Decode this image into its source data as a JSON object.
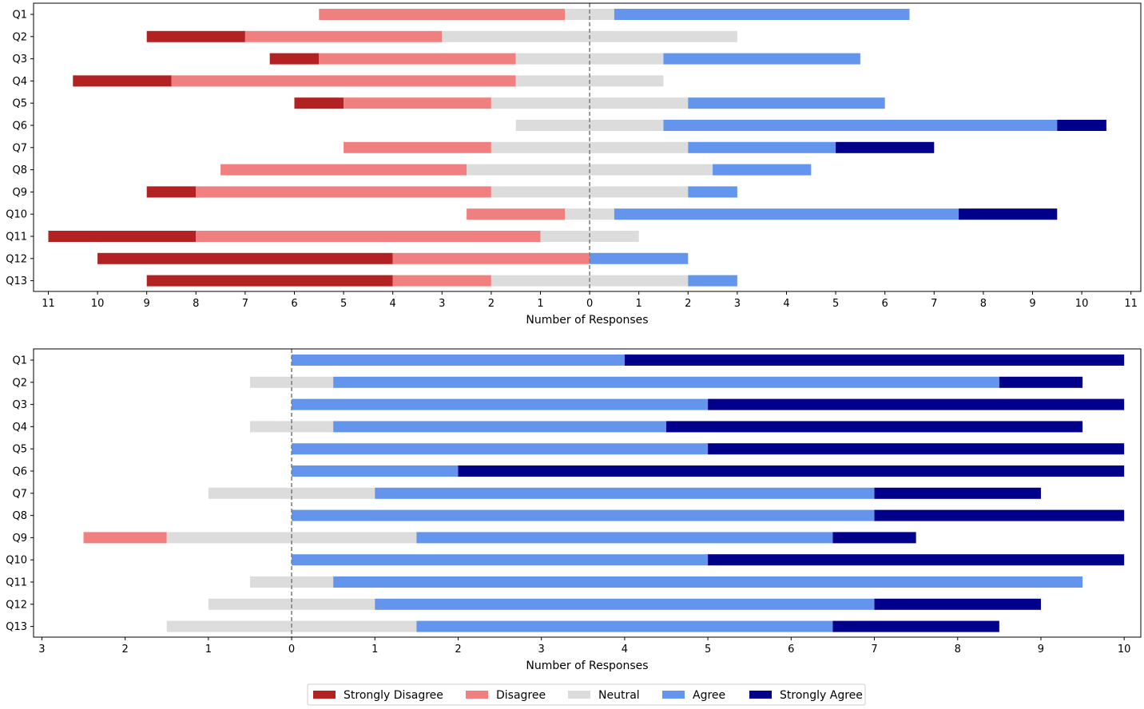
{
  "chart_data": [
    {
      "type": "bar",
      "orientation": "horizontal-diverging",
      "categories": [
        "Q1",
        "Q2",
        "Q3",
        "Q4",
        "Q5",
        "Q6",
        "Q7",
        "Q8",
        "Q9",
        "Q10",
        "Q11",
        "Q12",
        "Q13"
      ],
      "series": [
        {
          "name": "Strongly Disagree",
          "values": [
            0,
            2,
            1,
            2,
            1,
            0,
            0,
            0,
            1,
            0,
            3,
            6,
            5
          ]
        },
        {
          "name": "Disagree",
          "values": [
            5,
            4,
            4,
            7,
            3,
            0,
            3,
            5,
            6,
            2,
            7,
            4,
            2
          ]
        },
        {
          "name": "Neutral",
          "values": [
            1,
            6,
            3,
            3,
            4,
            3,
            4,
            5,
            4,
            1,
            2,
            0,
            4
          ]
        },
        {
          "name": "Agree",
          "values": [
            6,
            0,
            4,
            0,
            4,
            8,
            3,
            2,
            1,
            7,
            0,
            2,
            1
          ]
        },
        {
          "name": "Strongly Agree",
          "values": [
            0,
            0,
            0,
            0,
            0,
            1,
            2,
            0,
            0,
            2,
            0,
            0,
            0
          ]
        }
      ],
      "xlabel": "Number of Responses",
      "xlim": [
        -11.3,
        11.2
      ],
      "xticks": [
        -11,
        -10,
        -9,
        -8,
        -7,
        -6,
        -5,
        -4,
        -3,
        -2,
        -1,
        0,
        1,
        2,
        3,
        4,
        5,
        6,
        7,
        8,
        9,
        10,
        11
      ],
      "xtick_labels": [
        "11",
        "10",
        "9",
        "8",
        "7",
        "6",
        "5",
        "4",
        "3",
        "2",
        "1",
        "0",
        "1",
        "2",
        "3",
        "4",
        "5",
        "6",
        "7",
        "8",
        "9",
        "10",
        "11"
      ]
    },
    {
      "type": "bar",
      "orientation": "horizontal-diverging",
      "categories": [
        "Q1",
        "Q2",
        "Q3",
        "Q4",
        "Q5",
        "Q6",
        "Q7",
        "Q8",
        "Q9",
        "Q10",
        "Q11",
        "Q12",
        "Q13"
      ],
      "series": [
        {
          "name": "Strongly Disagree",
          "values": [
            0,
            0,
            0,
            0,
            0,
            0,
            0,
            0,
            0,
            0,
            0,
            0,
            0
          ]
        },
        {
          "name": "Disagree",
          "values": [
            0,
            0,
            0,
            0,
            0,
            0,
            0,
            0,
            1,
            0,
            0,
            0,
            0
          ]
        },
        {
          "name": "Neutral",
          "values": [
            0,
            1,
            0,
            1,
            0,
            0,
            2,
            0,
            3,
            0,
            1,
            2,
            3
          ]
        },
        {
          "name": "Agree",
          "values": [
            4,
            8,
            5,
            4,
            5,
            2,
            6,
            7,
            5,
            5,
            9,
            6,
            5
          ]
        },
        {
          "name": "Strongly Agree",
          "values": [
            6,
            1,
            5,
            5,
            5,
            8,
            2,
            3,
            1,
            5,
            0,
            2,
            2
          ]
        }
      ],
      "xlabel": "Number of Responses",
      "xlim": [
        -3.1,
        10.2
      ],
      "xticks": [
        -3,
        -2,
        -1,
        0,
        1,
        2,
        3,
        4,
        5,
        6,
        7,
        8,
        9,
        10
      ],
      "xtick_labels": [
        "3",
        "2",
        "1",
        "0",
        "1",
        "2",
        "3",
        "4",
        "5",
        "6",
        "7",
        "8",
        "9",
        "10"
      ]
    }
  ],
  "legend": {
    "position": "bottom-center",
    "entries": [
      "Strongly Disagree",
      "Disagree",
      "Neutral",
      "Agree",
      "Strongly Agree"
    ]
  },
  "colors": {
    "Strongly Disagree": "#b22222",
    "Disagree": "#f08080",
    "Neutral": "#dcdcdc",
    "Agree": "#6495ed",
    "Strongly Agree": "#00008b"
  }
}
